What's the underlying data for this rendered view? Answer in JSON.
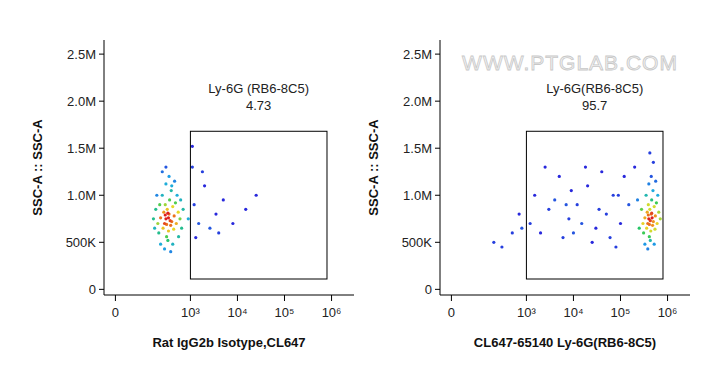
{
  "chart_data": [
    {
      "type": "scatter",
      "xlabel": "Rat IgG2b Isotype,CL647",
      "ylabel": "SSC-A :: SSC-A",
      "xlim": [
        -30,
        3000000
      ],
      "ylim": [
        -60000,
        2650000
      ],
      "xticks": [
        0,
        {
          "value": 1000,
          "label": "10³"
        },
        {
          "value": 10000,
          "label": "10⁴"
        },
        {
          "value": 100000,
          "label": "10⁵"
        },
        {
          "value": 1000000,
          "label": "10⁶"
        }
      ],
      "yticks": [
        0,
        {
          "value": 500000,
          "label": "500K"
        },
        {
          "value": 1000000,
          "label": "1.0M"
        },
        {
          "value": 1500000,
          "label": "1.5M"
        },
        {
          "value": 2000000,
          "label": "2.0M"
        },
        {
          "value": 2500000,
          "label": "2.5M"
        }
      ],
      "gate": {
        "label": "Ly-6G (RB6-8C5)",
        "value": 4.73,
        "x": [
          1000,
          800000
        ],
        "y": [
          110000,
          1680000
        ]
      },
      "x": [
        300,
        350,
        280,
        400,
        320,
        260,
        450,
        380,
        290,
        340,
        420,
        230,
        500,
        310,
        360,
        270,
        440,
        200,
        550,
        250,
        330,
        390,
        210,
        480,
        600,
        180,
        300,
        420,
        230,
        520,
        650,
        170,
        350,
        280,
        460,
        700,
        190,
        250,
        380,
        560,
        300,
        160,
        620,
        400,
        220,
        340,
        310,
        370,
        290,
        330,
        1200,
        1500,
        2000,
        2600,
        3500,
        1100,
        5000,
        8000,
        15000,
        1300,
        1800,
        25000,
        4000,
        900,
        1100
      ],
      "values": [
        750000,
        800000,
        700000,
        720000,
        850000,
        650000,
        780000,
        680000,
        900000,
        620000,
        880000,
        760000,
        700000,
        560000,
        950000,
        820000,
        640000,
        700000,
        820000,
        1000000,
        520000,
        1050000,
        600000,
        920000,
        750000,
        850000,
        1120000,
        480000,
        480000,
        1000000,
        650000,
        650000,
        1200000,
        430000,
        1150000,
        850000,
        1000000,
        1250000,
        400000,
        560000,
        1300000,
        750000,
        950000,
        1100000,
        900000,
        760000,
        690000,
        730000,
        790000,
        810000,
        900000,
        700000,
        1100000,
        650000,
        800000,
        1300000,
        950000,
        700000,
        850000,
        550000,
        1250000,
        1000000,
        600000,
        750000,
        1520000
      ]
    },
    {
      "type": "scatter",
      "xlabel": "CL647-65140 Ly-6G(RB6-8C5)",
      "ylabel": "SSC-A :: SSC-A",
      "watermark": "WWW.PTGLAB.COM",
      "xlim": [
        -30,
        3000000
      ],
      "ylim": [
        -60000,
        2650000
      ],
      "xticks": [
        0,
        {
          "value": 1000,
          "label": "10³"
        },
        {
          "value": 10000,
          "label": "10⁴"
        },
        {
          "value": 100000,
          "label": "10⁵"
        },
        {
          "value": 1000000,
          "label": "10⁶"
        }
      ],
      "yticks": [
        0,
        {
          "value": 500000,
          "label": "500K"
        },
        {
          "value": 1000000,
          "label": "1.0M"
        },
        {
          "value": 1500000,
          "label": "1.5M"
        },
        {
          "value": 2000000,
          "label": "2.0M"
        },
        {
          "value": 2500000,
          "label": "2.5M"
        }
      ],
      "gate": {
        "label": "Ly-6G(RB6-8C5)",
        "value": 95.7,
        "x": [
          1000,
          800000
        ],
        "y": [
          110000,
          1680000
        ]
      },
      "x": [
        400000,
        450000,
        380000,
        500000,
        420000,
        360000,
        550000,
        480000,
        390000,
        440000,
        520000,
        330000,
        600000,
        410000,
        460000,
        370000,
        540000,
        300000,
        650000,
        350000,
        430000,
        490000,
        310000,
        580000,
        700000,
        280000,
        400000,
        520000,
        330000,
        620000,
        250000,
        450000,
        380000,
        560000,
        230000,
        470000,
        410000,
        430000,
        390000,
        460000,
        500000,
        420000,
        150000,
        100000,
        70000,
        50000,
        30000,
        20000,
        12000,
        8000,
        5000,
        3000,
        2000,
        1500,
        1200,
        60000,
        40000,
        25000,
        15000,
        9000,
        6000,
        4000,
        2500,
        120000,
        80000,
        35000,
        18000,
        10000,
        7000,
        90000,
        200000,
        500,
        300,
        700,
        200,
        800
      ],
      "values": [
        750000,
        800000,
        700000,
        720000,
        850000,
        650000,
        780000,
        680000,
        900000,
        620000,
        880000,
        760000,
        700000,
        560000,
        950000,
        820000,
        640000,
        700000,
        820000,
        1000000,
        520000,
        1050000,
        600000,
        920000,
        750000,
        850000,
        1120000,
        480000,
        480000,
        1000000,
        650000,
        1200000,
        430000,
        1150000,
        950000,
        760000,
        690000,
        730000,
        790000,
        810000,
        1350000,
        1450000,
        900000,
        700000,
        1000000,
        800000,
        650000,
        1100000,
        900000,
        750000,
        1200000,
        850000,
        600000,
        1000000,
        700000,
        550000,
        1250000,
        500000,
        700000,
        1050000,
        550000,
        950000,
        1300000,
        1200000,
        450000,
        850000,
        1300000,
        600000,
        900000,
        1000000,
        1300000,
        600000,
        450000,
        800000,
        500000,
        650000
      ]
    }
  ]
}
